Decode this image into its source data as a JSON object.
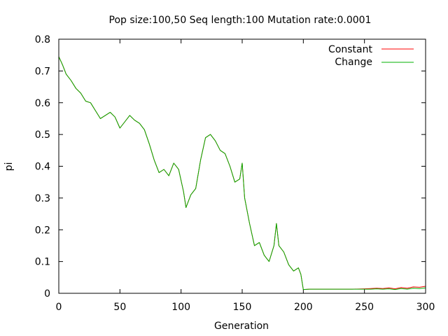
{
  "chart_data": {
    "type": "line",
    "title": "Pop size:100,50 Seq length:100 Mutation rate:0.0001",
    "xlabel": "Generation",
    "ylabel": "pi",
    "xlim": [
      0,
      300
    ],
    "ylim": [
      0,
      0.8
    ],
    "x_ticks": [
      "0",
      "50",
      "100",
      "150",
      "200",
      "250",
      "300"
    ],
    "y_ticks": [
      "0",
      "0.1",
      "0.2",
      "0.3",
      "0.4",
      "0.5",
      "0.6",
      "0.7",
      "0.8"
    ],
    "grid": false,
    "legend_position": "top-right",
    "series": [
      {
        "name": "Constant",
        "color": "#ff0000",
        "x": [
          0,
          3,
          6,
          10,
          14,
          18,
          22,
          26,
          30,
          34,
          38,
          42,
          46,
          50,
          54,
          58,
          62,
          66,
          70,
          74,
          78,
          82,
          86,
          90,
          94,
          98,
          102,
          104,
          108,
          112,
          116,
          120,
          124,
          128,
          132,
          136,
          140,
          144,
          148,
          150,
          152,
          156,
          160,
          164,
          168,
          172,
          176,
          178,
          180,
          184,
          188,
          192,
          196,
          198,
          200,
          205,
          210,
          220,
          230,
          240,
          250,
          255,
          260,
          265,
          270,
          275,
          280,
          285,
          290,
          295,
          300
        ],
        "y": [
          0.745,
          0.72,
          0.69,
          0.67,
          0.645,
          0.63,
          0.605,
          0.6,
          0.575,
          0.55,
          0.56,
          0.57,
          0.555,
          0.52,
          0.54,
          0.56,
          0.545,
          0.535,
          0.515,
          0.47,
          0.42,
          0.38,
          0.39,
          0.37,
          0.41,
          0.39,
          0.32,
          0.27,
          0.31,
          0.33,
          0.42,
          0.49,
          0.5,
          0.48,
          0.45,
          0.44,
          0.4,
          0.35,
          0.36,
          0.41,
          0.3,
          0.22,
          0.15,
          0.16,
          0.12,
          0.1,
          0.15,
          0.22,
          0.15,
          0.13,
          0.09,
          0.07,
          0.08,
          0.06,
          0.012,
          0.013,
          0.013,
          0.013,
          0.013,
          0.013,
          0.014,
          0.015,
          0.016,
          0.015,
          0.017,
          0.014,
          0.018,
          0.016,
          0.02,
          0.019,
          0.022
        ]
      },
      {
        "name": "Change",
        "color": "#00b000",
        "x": [
          0,
          3,
          6,
          10,
          14,
          18,
          22,
          26,
          30,
          34,
          38,
          42,
          46,
          50,
          54,
          58,
          62,
          66,
          70,
          74,
          78,
          82,
          86,
          90,
          94,
          98,
          102,
          104,
          108,
          112,
          116,
          120,
          124,
          128,
          132,
          136,
          140,
          144,
          148,
          150,
          152,
          156,
          160,
          164,
          168,
          172,
          176,
          178,
          180,
          184,
          188,
          192,
          196,
          198,
          200,
          205,
          210,
          220,
          230,
          240,
          250,
          255,
          260,
          265,
          270,
          275,
          280,
          285,
          290,
          295,
          300
        ],
        "y": [
          0.745,
          0.72,
          0.69,
          0.67,
          0.645,
          0.63,
          0.605,
          0.6,
          0.575,
          0.55,
          0.56,
          0.57,
          0.555,
          0.52,
          0.54,
          0.56,
          0.545,
          0.535,
          0.515,
          0.47,
          0.42,
          0.38,
          0.39,
          0.37,
          0.41,
          0.39,
          0.32,
          0.27,
          0.31,
          0.33,
          0.42,
          0.49,
          0.5,
          0.48,
          0.45,
          0.44,
          0.4,
          0.35,
          0.36,
          0.41,
          0.3,
          0.22,
          0.15,
          0.16,
          0.12,
          0.1,
          0.15,
          0.22,
          0.15,
          0.13,
          0.09,
          0.07,
          0.08,
          0.06,
          0.012,
          0.013,
          0.013,
          0.013,
          0.013,
          0.013,
          0.013,
          0.013,
          0.014,
          0.013,
          0.014,
          0.012,
          0.015,
          0.013,
          0.016,
          0.015,
          0.017
        ]
      }
    ]
  }
}
